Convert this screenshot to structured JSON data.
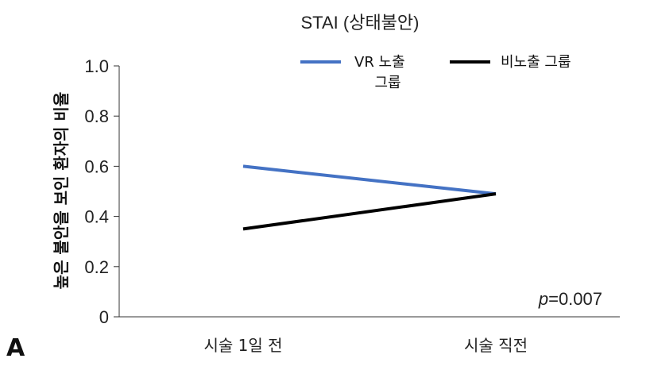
{
  "chart_data": {
    "type": "line",
    "title": "STAI  (상태불안)",
    "ylabel": "높은 불안을 보인 환자의 비율",
    "xlabel": "",
    "categories": [
      "시술 1일 전",
      "시술 직전"
    ],
    "ylim": [
      0,
      1.0
    ],
    "yticks": [
      "0",
      "0.2",
      "0.4",
      "0.6",
      "0.8",
      "1.0"
    ],
    "series": [
      {
        "name": "VR 노출 그룹",
        "name_line1": "VR 노출",
        "name_line2": "그룹",
        "color": "#4472C4",
        "values": [
          0.6,
          0.49
        ]
      },
      {
        "name": "비노출 그룹",
        "color": "#000000",
        "values": [
          0.35,
          0.49
        ]
      }
    ],
    "annotation": {
      "p_italic": "p",
      "p_value": "=0.007"
    },
    "panel_label": "A",
    "legend_position": "top-right",
    "grid": false
  }
}
